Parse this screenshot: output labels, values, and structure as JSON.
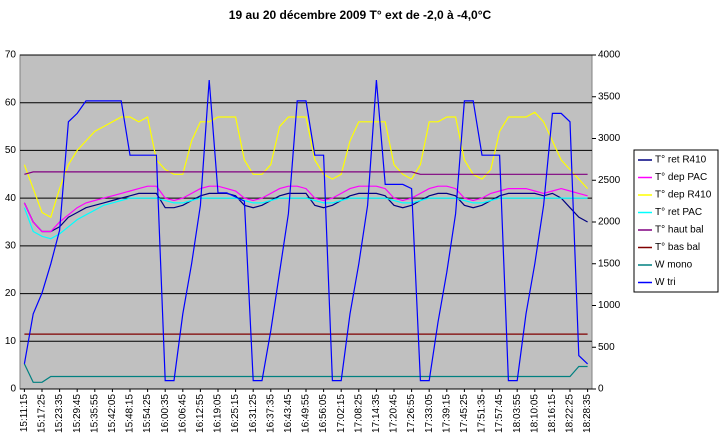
{
  "chart_data": {
    "type": "line",
    "title": "19 au 20 décembre 2009   T° ext  de -2,0 à -4,0°C",
    "categories": [
      "15:11:15",
      null,
      "15:17:25",
      null,
      "15:23:35",
      null,
      "15:29:45",
      null,
      "15:35:55",
      null,
      "15:42:05",
      null,
      "15:48:15",
      null,
      "15:54:25",
      null,
      "16:00:35",
      null,
      "16:06:45",
      null,
      "16:12:55",
      null,
      "16:19:05",
      null,
      "16:25:15",
      null,
      "16:31:25",
      null,
      "16:37:35",
      null,
      "16:43:45",
      null,
      "16:49:55",
      null,
      "16:56:05",
      null,
      "17:02:15",
      null,
      "17:08:25",
      null,
      "17:14:35",
      null,
      "17:20:45",
      null,
      "17:26:55",
      null,
      "17:33:05",
      null,
      "17:39:15",
      null,
      "17:45:25",
      null,
      "17:51:35",
      null,
      "17:57:45",
      null,
      "18:03:55",
      null,
      "18:10:05",
      null,
      "18:16:15",
      null,
      "18:22:25",
      null,
      "18:28:35"
    ],
    "ylim": [
      0,
      70
    ],
    "yticks": [
      0,
      10,
      20,
      30,
      40,
      50,
      60,
      70
    ],
    "y2lim": [
      0,
      4000
    ],
    "y2ticks": [
      0,
      500,
      1000,
      1500,
      2000,
      2500,
      3000,
      3500,
      4000
    ],
    "grid": true,
    "legend": "right",
    "series": [
      {
        "name": "T° ret R410",
        "color": "#000080",
        "values": [
          39,
          35,
          33,
          33,
          34,
          36,
          37,
          38,
          38.5,
          39,
          39.5,
          40,
          40.5,
          41,
          41,
          41,
          38,
          38,
          38.5,
          39.5,
          40.5,
          41,
          41,
          41,
          40.5,
          38.5,
          38,
          38.5,
          39.5,
          40.5,
          41,
          41,
          41,
          38.5,
          38,
          38.5,
          39.5,
          40.5,
          41,
          41,
          41,
          40.5,
          38.5,
          38,
          38.5,
          39.5,
          40.5,
          41,
          41,
          40.5,
          38.5,
          38,
          38.5,
          39.5,
          40.5,
          41,
          41,
          41,
          41,
          40.5,
          41,
          40,
          38,
          36,
          35
        ]
      },
      {
        "name": "T° dep PAC",
        "color": "#ff00ff",
        "values": [
          39,
          35,
          33,
          33,
          35,
          36.5,
          38,
          39,
          39.5,
          40,
          40.5,
          41,
          41.5,
          42,
          42.5,
          42.5,
          40,
          39.5,
          40,
          41,
          42,
          42.5,
          42.5,
          42,
          41.5,
          40,
          39.5,
          40,
          41,
          42,
          42.5,
          42.5,
          42,
          40,
          39.5,
          40,
          41,
          42,
          42.5,
          42.5,
          42.5,
          42,
          40,
          39.5,
          40,
          41,
          42,
          42.5,
          42.5,
          42,
          40,
          39.5,
          40,
          41,
          41.5,
          42,
          42,
          42,
          41.5,
          41,
          41.5,
          42,
          41.5,
          41,
          40.5
        ]
      },
      {
        "name": "T° dep R410",
        "color": "#ffff00",
        "values": [
          47,
          42,
          37,
          36,
          42,
          47,
          50,
          52,
          54,
          55,
          56,
          57,
          57,
          56,
          57,
          48,
          46,
          45,
          45,
          52,
          56,
          56,
          57,
          57,
          57,
          48,
          45,
          45,
          47,
          55,
          57,
          57,
          57,
          48,
          45,
          44,
          45,
          52,
          56,
          56,
          56,
          56,
          47,
          45,
          44,
          47,
          56,
          56,
          57,
          57,
          48,
          45,
          44,
          46,
          54,
          57,
          57,
          57,
          58,
          56,
          52,
          48,
          46,
          44,
          42
        ]
      },
      {
        "name": "T° ret PAC",
        "color": "#00ffff",
        "values": [
          38,
          33,
          32,
          31.5,
          32.5,
          34,
          35.5,
          36.5,
          37.5,
          38.5,
          39,
          39.5,
          40,
          40,
          40,
          40,
          39.5,
          39,
          39,
          39.5,
          40,
          40,
          40,
          40,
          40,
          39.5,
          39,
          39,
          39.5,
          40,
          40,
          40,
          40,
          39.5,
          39,
          39,
          39.5,
          40,
          40,
          40,
          40,
          40,
          39.5,
          39,
          39,
          39.5,
          40,
          40,
          40,
          40,
          39.5,
          39,
          39,
          39.5,
          40,
          40,
          40,
          40,
          40,
          40,
          40,
          40,
          40,
          40,
          40
        ]
      },
      {
        "name": "T° haut bal",
        "color": "#800080",
        "values": [
          45,
          45.5,
          45.5,
          45.5,
          45.5,
          45.5,
          45.5,
          45.5,
          45.5,
          45.5,
          45.5,
          45.5,
          45.5,
          45.5,
          45.5,
          45.5,
          45.5,
          45.5,
          45.5,
          45.5,
          45.5,
          45.5,
          45.5,
          45.5,
          45.5,
          45.5,
          45.5,
          45.5,
          45.5,
          45.5,
          45.5,
          45.5,
          45.5,
          45.5,
          45.5,
          45.5,
          45.5,
          45.5,
          45.5,
          45.5,
          45.5,
          45.5,
          45.5,
          45.5,
          45.5,
          45,
          45,
          45,
          45,
          45,
          45,
          45,
          45,
          45,
          45,
          45,
          45,
          45,
          45,
          45,
          45,
          45,
          45,
          45,
          45
        ]
      },
      {
        "name": "T° bas bal",
        "color": "#800000",
        "values": [
          11.5,
          11.5,
          11.5,
          11.5,
          11.5,
          11.5,
          11.5,
          11.5,
          11.5,
          11.5,
          11.5,
          11.5,
          11.5,
          11.5,
          11.5,
          11.5,
          11.5,
          11.5,
          11.5,
          11.5,
          11.5,
          11.5,
          11.5,
          11.5,
          11.5,
          11.5,
          11.5,
          11.5,
          11.5,
          11.5,
          11.5,
          11.5,
          11.5,
          11.5,
          11.5,
          11.5,
          11.5,
          11.5,
          11.5,
          11.5,
          11.5,
          11.5,
          11.5,
          11.5,
          11.5,
          11.5,
          11.5,
          11.5,
          11.5,
          11.5,
          11.5,
          11.5,
          11.5,
          11.5,
          11.5,
          11.5,
          11.5,
          11.5,
          11.5,
          11.5,
          11.5,
          11.5,
          11.5,
          11.5,
          11.5
        ]
      },
      {
        "name": "W mono",
        "color": "#008080",
        "axis": "y2",
        "values": [
          300,
          80,
          80,
          150,
          150,
          150,
          150,
          150,
          150,
          150,
          150,
          150,
          150,
          150,
          150,
          150,
          150,
          150,
          150,
          150,
          150,
          150,
          150,
          150,
          150,
          150,
          150,
          150,
          150,
          150,
          150,
          150,
          150,
          150,
          150,
          150,
          150,
          150,
          150,
          150,
          150,
          150,
          150,
          150,
          150,
          150,
          150,
          150,
          150,
          150,
          150,
          150,
          150,
          150,
          150,
          150,
          150,
          150,
          150,
          150,
          150,
          150,
          150,
          270,
          270
        ]
      },
      {
        "name": "W tri",
        "color": "#0000ff",
        "axis": "y2",
        "values": [
          300,
          900,
          1150,
          1500,
          1900,
          3200,
          3300,
          3450,
          3450,
          3450,
          3450,
          3450,
          2800,
          2800,
          2800,
          2800,
          100,
          100,
          900,
          1500,
          2200,
          3700,
          2350,
          2350,
          2300,
          2250,
          100,
          100,
          700,
          1400,
          2100,
          3450,
          3450,
          2800,
          2800,
          100,
          100,
          900,
          1500,
          2200,
          3700,
          2450,
          2450,
          2450,
          2400,
          100,
          100,
          800,
          1400,
          2100,
          3450,
          3450,
          2800,
          2800,
          2800,
          100,
          100,
          900,
          1500,
          2200,
          3300,
          3300,
          3200,
          400,
          300
        ]
      }
    ]
  }
}
